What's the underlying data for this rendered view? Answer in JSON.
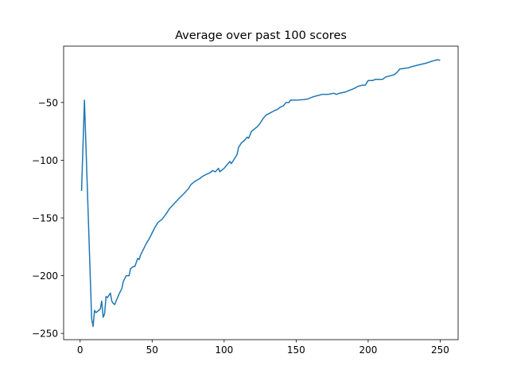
{
  "chart_data": {
    "type": "line",
    "title": "Average over past 100 scores",
    "x": [
      1,
      3,
      8,
      9,
      10,
      11,
      12,
      13,
      14,
      15,
      16,
      17,
      18,
      19,
      20,
      21,
      22,
      23,
      24,
      25,
      27,
      29,
      30,
      32,
      34,
      35,
      37,
      38,
      40,
      41,
      42,
      44,
      46,
      48,
      50,
      52,
      54,
      57,
      60,
      62,
      65,
      68,
      72,
      75,
      77,
      80,
      83,
      85,
      88,
      90,
      92,
      94,
      96,
      97,
      100,
      102,
      104,
      105,
      107,
      109,
      110,
      112,
      114,
      116,
      117,
      119,
      121,
      123,
      125,
      127,
      129,
      132,
      135,
      137,
      139,
      141,
      143,
      145,
      146,
      150,
      155,
      158,
      162,
      165,
      168,
      172,
      176,
      178,
      180,
      184,
      186,
      190,
      193,
      196,
      198,
      200,
      203,
      205,
      210,
      212,
      215,
      218,
      220,
      222,
      228,
      230,
      235,
      240,
      245,
      248,
      250
    ],
    "series": [
      {
        "color": "#1f77b4",
        "values": [
          -126.6,
          -48,
          -237,
          -244,
          -230,
          -232,
          -231,
          -230,
          -229,
          -222,
          -236,
          -233,
          -218,
          -219,
          -217,
          -215,
          -222,
          -224,
          -225,
          -222,
          -216,
          -211,
          -205,
          -200,
          -200,
          -194,
          -192,
          -192,
          -185,
          -186,
          -182,
          -177,
          -172,
          -168,
          -163,
          -158,
          -154,
          -151,
          -146,
          -142,
          -138,
          -134,
          -129,
          -125,
          -121,
          -118,
          -116,
          -114,
          -112,
          -111,
          -109,
          -110,
          -107,
          -110,
          -107,
          -104,
          -101,
          -103,
          -99,
          -95,
          -89,
          -85,
          -83,
          -80,
          -81,
          -75,
          -73,
          -71,
          -68,
          -64,
          -61,
          -59,
          -57,
          -56,
          -54,
          -53,
          -50,
          -50,
          -48,
          -48,
          -47.5,
          -47,
          -45,
          -44,
          -43,
          -43,
          -42,
          -43,
          -42,
          -41,
          -40,
          -38,
          -36,
          -35,
          -35,
          -31,
          -31,
          -30,
          -30,
          -28,
          -27,
          -26,
          -24,
          -21,
          -20,
          -19,
          -17.5,
          -16,
          -14,
          -13,
          -13.5
        ]
      }
    ],
    "xlim": [
      -11.45,
      262.45
    ],
    "ylim": [
      -255.4,
      -1.2
    ],
    "xticks": [
      0,
      50,
      100,
      150,
      200,
      250
    ],
    "yticks": [
      {
        "value": -250,
        "label": "−250"
      },
      {
        "value": -200,
        "label": "−200"
      },
      {
        "value": -150,
        "label": "−150"
      },
      {
        "value": -100,
        "label": "−100"
      },
      {
        "value": -50,
        "label": "−50"
      }
    ]
  }
}
